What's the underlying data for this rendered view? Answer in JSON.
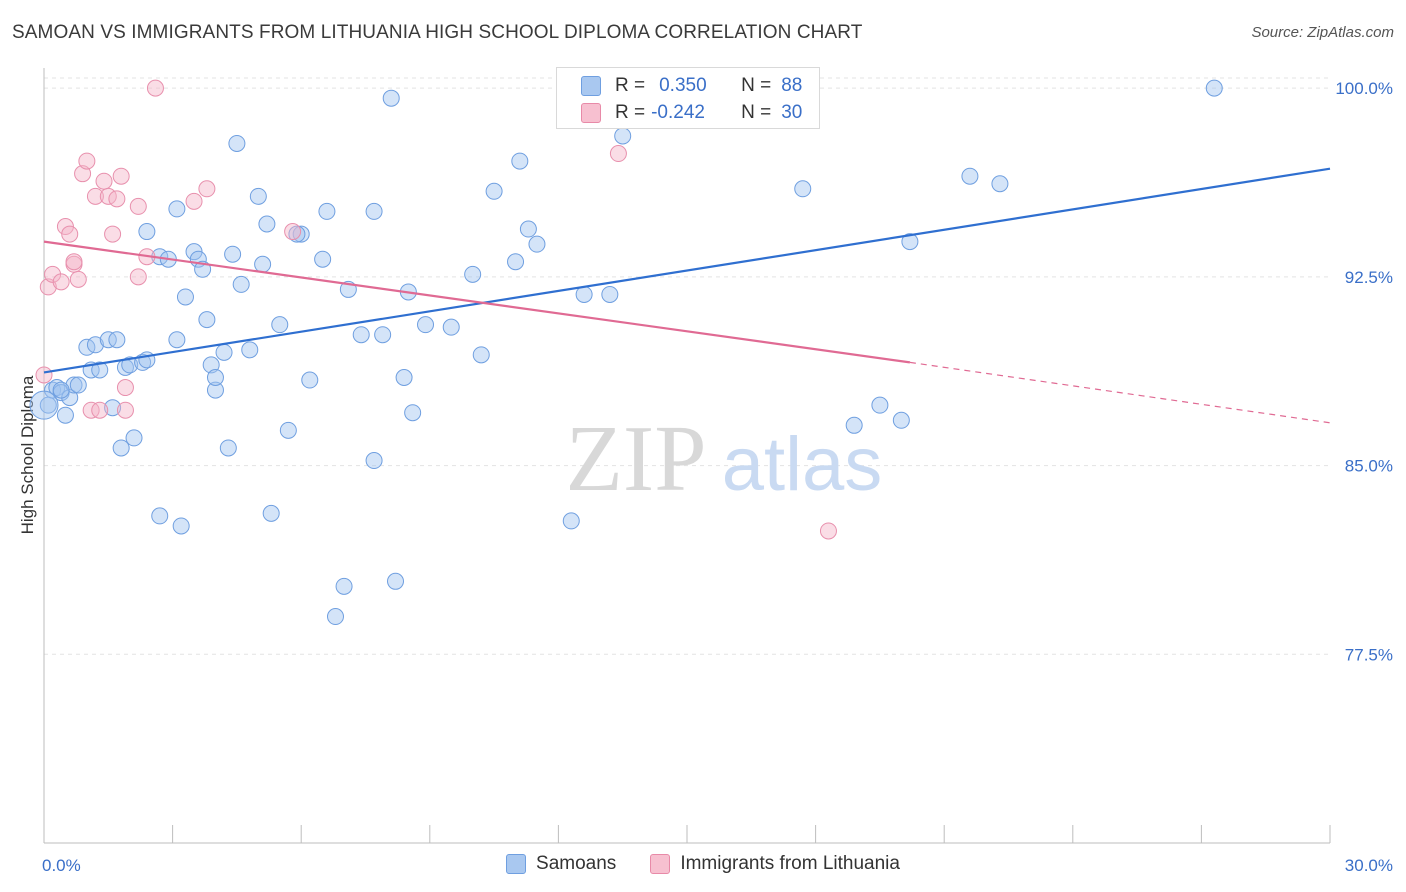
{
  "title": "SAMOAN VS IMMIGRANTS FROM LITHUANIA HIGH SCHOOL DIPLOMA CORRELATION CHART",
  "source": "Source: ZipAtlas.com",
  "watermark": {
    "zip": "ZIP",
    "atlas": "atlas"
  },
  "legend_stats": [
    {
      "r_label": "R =",
      "r_value": "0.350",
      "n_label": "N =",
      "n_value": "88",
      "color": "#a9c8f0",
      "border": "#6f9fe0"
    },
    {
      "r_label": "R =",
      "r_value": "-0.242",
      "n_label": "N =",
      "n_value": "30",
      "color": "#f7c0d0",
      "border": "#e88aa8"
    }
  ],
  "colors": {
    "blue_fill": "rgba(160,195,240,0.45)",
    "blue_stroke": "#6f9fe0",
    "blue_line": "#2f6fd0",
    "pink_fill": "rgba(245,180,200,0.45)",
    "pink_stroke": "#e890ad",
    "pink_line": "#e06a93",
    "tick_label": "#3a6fc8",
    "grid": "#e3e3e3"
  },
  "chart_data": {
    "type": "scatter",
    "xlabel": "",
    "ylabel": "High School Diploma",
    "xlim": [
      0,
      30
    ],
    "ylim": [
      70,
      100.8
    ],
    "x_tick_labels": [
      {
        "value": 0,
        "label": "0.0%"
      },
      {
        "value": 30,
        "label": "30.0%"
      }
    ],
    "y_tick_labels": [
      {
        "value": 100,
        "label": "100.0%"
      },
      {
        "value": 92.5,
        "label": "92.5%"
      },
      {
        "value": 85,
        "label": "85.0%"
      },
      {
        "value": 77.5,
        "label": "77.5%"
      }
    ],
    "grid": true,
    "legend_position": "bottom",
    "series": [
      {
        "name": "Samoans",
        "color": "#6f9fe0",
        "trend": {
          "x": [
            0,
            30
          ],
          "y": [
            88.7,
            96.8
          ]
        },
        "points": [
          [
            0.1,
            87.4
          ],
          [
            0.2,
            88.0
          ],
          [
            0.3,
            88.1
          ],
          [
            0.4,
            87.9
          ],
          [
            0.5,
            87.0
          ],
          [
            0.6,
            87.7
          ],
          [
            0.7,
            88.2
          ],
          [
            0.8,
            88.2
          ],
          [
            1.0,
            89.7
          ],
          [
            1.1,
            88.8
          ],
          [
            1.2,
            89.8
          ],
          [
            1.3,
            88.8
          ],
          [
            1.5,
            90.0
          ],
          [
            1.6,
            87.3
          ],
          [
            1.7,
            90.0
          ],
          [
            1.8,
            85.7
          ],
          [
            1.9,
            88.9
          ],
          [
            2.0,
            89.0
          ],
          [
            2.1,
            86.1
          ],
          [
            2.3,
            89.1
          ],
          [
            2.4,
            89.2
          ],
          [
            2.4,
            94.3
          ],
          [
            2.7,
            93.3
          ],
          [
            2.7,
            83.0
          ],
          [
            2.9,
            93.2
          ],
          [
            3.1,
            90.0
          ],
          [
            3.1,
            95.2
          ],
          [
            3.2,
            82.6
          ],
          [
            3.3,
            91.7
          ],
          [
            3.5,
            93.5
          ],
          [
            3.6,
            93.2
          ],
          [
            3.7,
            92.8
          ],
          [
            3.8,
            90.8
          ],
          [
            3.9,
            89.0
          ],
          [
            4.0,
            88.0
          ],
          [
            4.0,
            88.5
          ],
          [
            4.2,
            89.5
          ],
          [
            4.3,
            85.7
          ],
          [
            4.4,
            93.4
          ],
          [
            4.5,
            97.8
          ],
          [
            4.6,
            92.2
          ],
          [
            4.8,
            89.6
          ],
          [
            5.0,
            95.7
          ],
          [
            5.1,
            93.0
          ],
          [
            5.2,
            94.6
          ],
          [
            5.3,
            83.1
          ],
          [
            5.5,
            90.6
          ],
          [
            5.7,
            86.4
          ],
          [
            6.0,
            94.2
          ],
          [
            6.2,
            88.4
          ],
          [
            6.5,
            93.2
          ],
          [
            6.6,
            95.1
          ],
          [
            6.8,
            79.0
          ],
          [
            7.0,
            80.2
          ],
          [
            7.1,
            92.0
          ],
          [
            7.4,
            90.2
          ],
          [
            7.7,
            95.1
          ],
          [
            7.7,
            85.2
          ],
          [
            7.9,
            90.2
          ],
          [
            8.2,
            80.4
          ],
          [
            8.1,
            99.6
          ],
          [
            8.4,
            88.5
          ],
          [
            8.5,
            91.9
          ],
          [
            8.6,
            87.1
          ],
          [
            8.9,
            90.6
          ],
          [
            9.5,
            90.5
          ],
          [
            10.0,
            92.6
          ],
          [
            10.2,
            89.4
          ],
          [
            10.5,
            95.9
          ],
          [
            11.0,
            93.1
          ],
          [
            11.1,
            97.1
          ],
          [
            11.3,
            94.4
          ],
          [
            11.5,
            93.8
          ],
          [
            12.3,
            82.8
          ],
          [
            12.6,
            91.8
          ],
          [
            13.2,
            91.8
          ],
          [
            13.5,
            98.1
          ],
          [
            14.3,
            100.2
          ],
          [
            17.7,
            96.0
          ],
          [
            18.9,
            86.6
          ],
          [
            19.5,
            87.4
          ],
          [
            20.0,
            86.8
          ],
          [
            20.2,
            93.9
          ],
          [
            21.6,
            96.5
          ],
          [
            22.3,
            96.2
          ],
          [
            27.3,
            100.0
          ],
          [
            5.9,
            94.2
          ],
          [
            0.4,
            88.0
          ]
        ]
      },
      {
        "name": "Immigrants from Lithuania",
        "color": "#e890ad",
        "trend": {
          "x": [
            0,
            20.2
          ],
          "y": [
            93.9,
            89.1
          ]
        },
        "trend_dashed": {
          "x": [
            20.2,
            30
          ],
          "y": [
            89.1,
            86.7
          ]
        },
        "points": [
          [
            0.0,
            88.6
          ],
          [
            0.1,
            92.1
          ],
          [
            0.2,
            92.6
          ],
          [
            0.4,
            92.3
          ],
          [
            0.5,
            94.5
          ],
          [
            0.6,
            94.2
          ],
          [
            0.7,
            93.0
          ],
          [
            0.7,
            93.1
          ],
          [
            0.8,
            92.4
          ],
          [
            0.9,
            96.6
          ],
          [
            1.0,
            97.1
          ],
          [
            1.1,
            87.2
          ],
          [
            1.2,
            95.7
          ],
          [
            1.3,
            87.2
          ],
          [
            1.4,
            96.3
          ],
          [
            1.5,
            95.7
          ],
          [
            1.6,
            94.2
          ],
          [
            1.7,
            95.6
          ],
          [
            1.8,
            96.5
          ],
          [
            1.9,
            88.1
          ],
          [
            1.9,
            87.2
          ],
          [
            2.2,
            92.5
          ],
          [
            2.2,
            95.3
          ],
          [
            2.4,
            93.3
          ],
          [
            2.6,
            100.0
          ],
          [
            3.5,
            95.5
          ],
          [
            3.8,
            96.0
          ],
          [
            5.8,
            94.3
          ],
          [
            13.4,
            97.4
          ],
          [
            18.3,
            82.4
          ]
        ]
      }
    ]
  }
}
